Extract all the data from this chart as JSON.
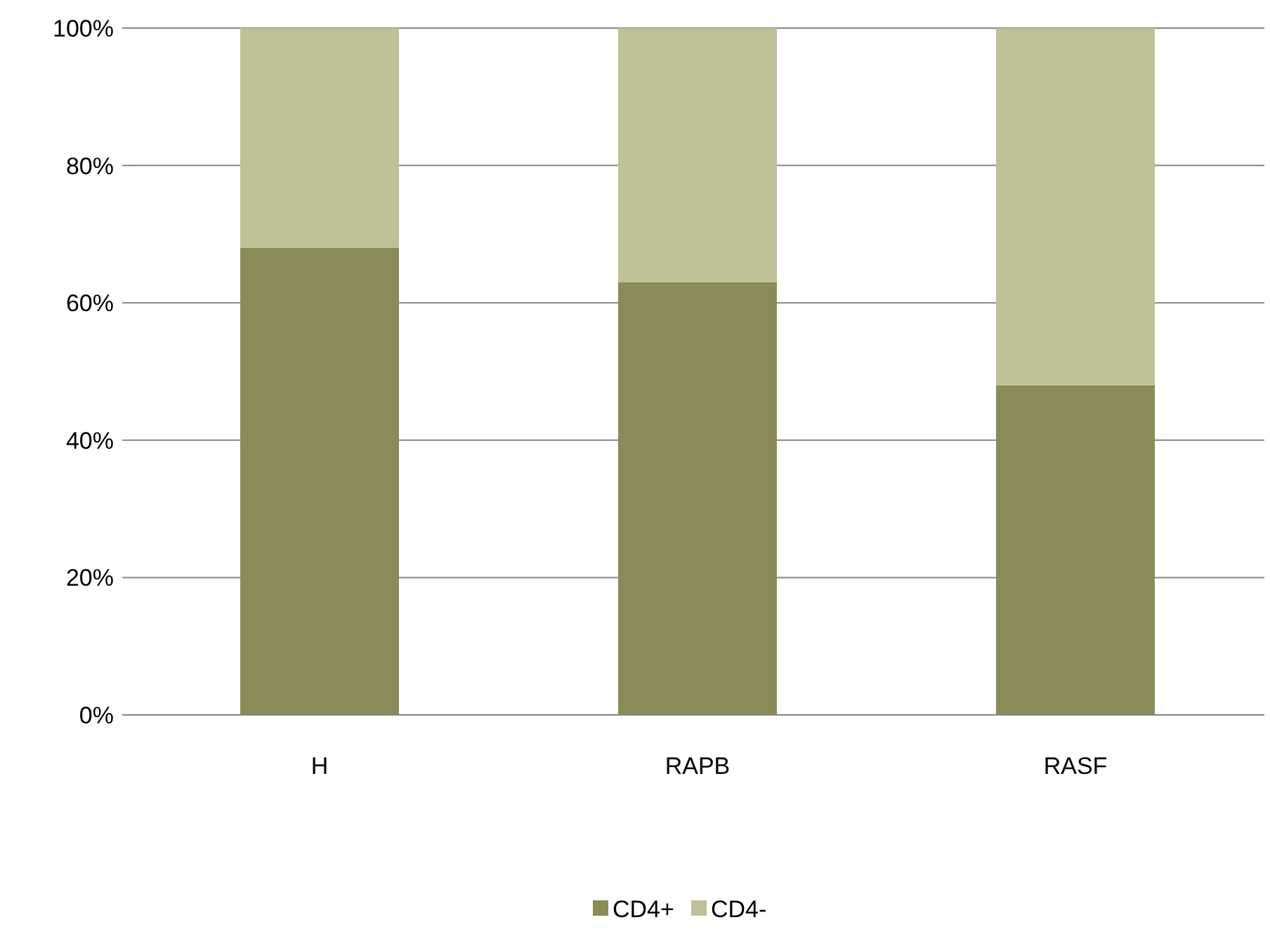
{
  "chart_data": {
    "type": "bar",
    "stacked": true,
    "categories": [
      "H",
      "RAPB",
      "RASF"
    ],
    "series": [
      {
        "name": "CD4+",
        "color": "#8b8b57",
        "values": [
          68,
          63,
          48
        ]
      },
      {
        "name": "CD4-",
        "color": "#bfc196",
        "values": [
          32,
          37,
          52
        ]
      }
    ],
    "ylim": [
      0,
      100
    ],
    "yticks": [
      {
        "value": 0,
        "label": "0%"
      },
      {
        "value": 20,
        "label": "20%"
      },
      {
        "value": 40,
        "label": "40%"
      },
      {
        "value": 60,
        "label": "60%"
      },
      {
        "value": 80,
        "label": "80%"
      },
      {
        "value": 100,
        "label": "100%"
      }
    ],
    "grid": "y",
    "legend": "bottom"
  }
}
